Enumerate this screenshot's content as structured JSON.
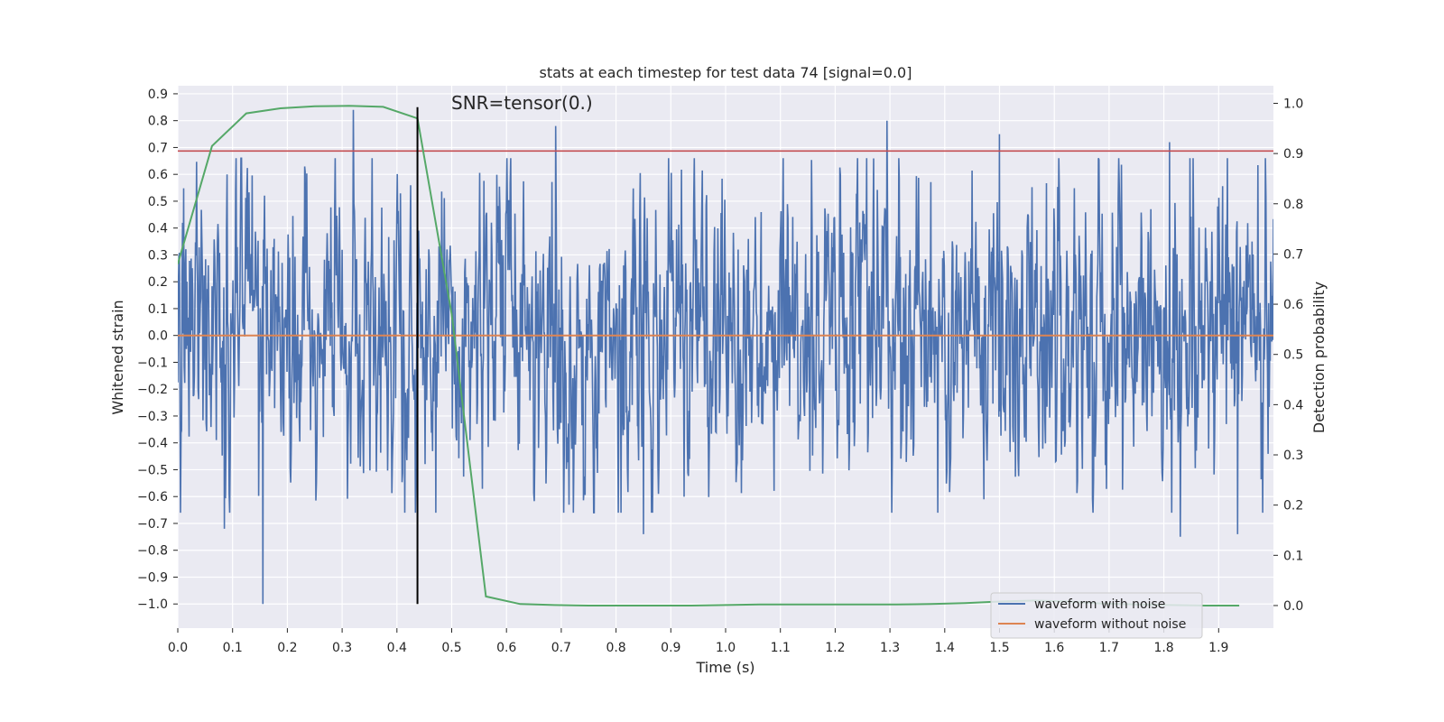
{
  "chart_data": {
    "type": "line",
    "title": "stats at each timestep for test data 74 [signal=0.0]",
    "xlabel": "Time (s)",
    "ylabel": "Whitened strain",
    "ylabel_right": "Detection probability",
    "xlim": [
      0.0,
      2.0
    ],
    "ylim": [
      -1.09,
      0.93
    ],
    "ylim_right": [
      -0.045,
      1.035
    ],
    "xticks": [
      "0.0",
      "0.1",
      "0.2",
      "0.3",
      "0.4",
      "0.5",
      "0.6",
      "0.7",
      "0.8",
      "0.9",
      "1.0",
      "1.1",
      "1.2",
      "1.3",
      "1.4",
      "1.5",
      "1.6",
      "1.7",
      "1.8",
      "1.9"
    ],
    "yticks": [
      "0.9",
      "0.8",
      "0.7",
      "0.6",
      "0.5",
      "0.4",
      "0.3",
      "0.2",
      "0.1",
      "0.0",
      "-0.1",
      "-0.2",
      "-0.3",
      "-0.4",
      "-0.5",
      "-0.6",
      "-0.7",
      "-0.8",
      "-0.9",
      "-1.0"
    ],
    "yticks_right": [
      "1.0",
      "0.9",
      "0.8",
      "0.7",
      "0.6",
      "0.5",
      "0.4",
      "0.3",
      "0.2",
      "0.1",
      "0.0"
    ],
    "annotation": "SNR=tensor(0.)",
    "grid": true,
    "legend_position": "lower-right",
    "colors": {
      "background": "#eaeaf2",
      "grid": "#ffffff",
      "noise": "#4c72b0",
      "clean": "#dd8452",
      "probability": "#55a868",
      "threshold": "#c44e52",
      "marker": "#000000"
    },
    "noise_series": {
      "name": "waveform with noise",
      "seed": 74,
      "amplitude": 0.28,
      "t_start": 0.0,
      "t_end": 2.0,
      "peaks": [
        {
          "x": 0.32,
          "y": 0.84
        },
        {
          "x": 0.69,
          "y": 0.78
        },
        {
          "x": 1.295,
          "y": 0.8
        },
        {
          "x": 1.5,
          "y": 0.75
        },
        {
          "x": 1.81,
          "y": 0.72
        },
        {
          "x": 0.155,
          "y": -1.0
        },
        {
          "x": 0.085,
          "y": -0.72
        },
        {
          "x": 0.85,
          "y": -0.74
        },
        {
          "x": 1.5,
          "y": -0.78
        },
        {
          "x": 1.83,
          "y": -0.75
        },
        {
          "x": 1.935,
          "y": -0.74
        }
      ]
    },
    "clean_series": {
      "name": "waveform without noise",
      "x": [
        0.0,
        2.0
      ],
      "y": [
        0.0,
        0.0
      ]
    },
    "probability_series": {
      "x": [
        0.0,
        0.0625,
        0.125,
        0.1875,
        0.25,
        0.3125,
        0.375,
        0.4375,
        0.5,
        0.5625,
        0.625,
        0.6875,
        0.75,
        0.8125,
        0.875,
        0.9375,
        1.0,
        1.0625,
        1.125,
        1.1875,
        1.25,
        1.3125,
        1.375,
        1.4375,
        1.5,
        1.5625,
        1.625,
        1.6875,
        1.75,
        1.8125,
        1.875,
        1.9375
      ],
      "y": [
        0.68,
        0.915,
        0.98,
        0.99,
        0.994,
        0.995,
        0.993,
        0.97,
        0.58,
        0.018,
        0.003,
        0.001,
        0.0,
        0.0,
        0.0,
        0.0,
        0.001,
        0.002,
        0.002,
        0.002,
        0.002,
        0.002,
        0.003,
        0.005,
        0.008,
        0.01,
        0.008,
        0.004,
        0.002,
        0.001,
        0.0,
        0.0
      ]
    },
    "threshold_right": 0.905,
    "marker_time": 0.4375,
    "marker_range": [
      -1.0,
      0.85
    ]
  }
}
